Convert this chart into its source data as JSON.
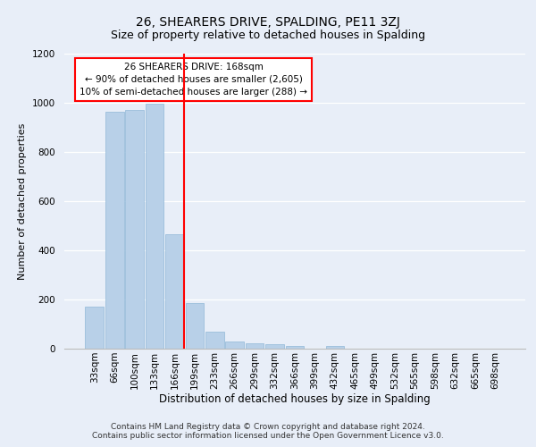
{
  "title": "26, SHEARERS DRIVE, SPALDING, PE11 3ZJ",
  "subtitle": "Size of property relative to detached houses in Spalding",
  "xlabel": "Distribution of detached houses by size in Spalding",
  "ylabel": "Number of detached properties",
  "bar_categories": [
    "33sqm",
    "66sqm",
    "100sqm",
    "133sqm",
    "166sqm",
    "199sqm",
    "233sqm",
    "266sqm",
    "299sqm",
    "332sqm",
    "366sqm",
    "399sqm",
    "432sqm",
    "465sqm",
    "499sqm",
    "532sqm",
    "565sqm",
    "598sqm",
    "632sqm",
    "665sqm",
    "698sqm"
  ],
  "bar_values": [
    170,
    965,
    970,
    995,
    465,
    185,
    70,
    28,
    22,
    18,
    12,
    0,
    12,
    0,
    0,
    0,
    0,
    0,
    0,
    0,
    0
  ],
  "bar_color": "#b8d0e8",
  "bar_edgecolor": "#90b8d8",
  "vline_color": "red",
  "vline_x_index": 4,
  "annotation_text": "26 SHEARERS DRIVE: 168sqm\n← 90% of detached houses are smaller (2,605)\n10% of semi-detached houses are larger (288) →",
  "annotation_box_facecolor": "white",
  "annotation_box_edgecolor": "red",
  "ylim": [
    0,
    1200
  ],
  "yticks": [
    0,
    200,
    400,
    600,
    800,
    1000,
    1200
  ],
  "footer_line1": "Contains HM Land Registry data © Crown copyright and database right 2024.",
  "footer_line2": "Contains public sector information licensed under the Open Government Licence v3.0.",
  "bg_color": "#e8eef8",
  "plot_bg_color": "#e8eef8",
  "title_fontsize": 10,
  "subtitle_fontsize": 9,
  "ylabel_fontsize": 8,
  "xlabel_fontsize": 8.5,
  "tick_fontsize": 7.5,
  "annotation_fontsize": 7.5,
  "footer_fontsize": 6.5
}
